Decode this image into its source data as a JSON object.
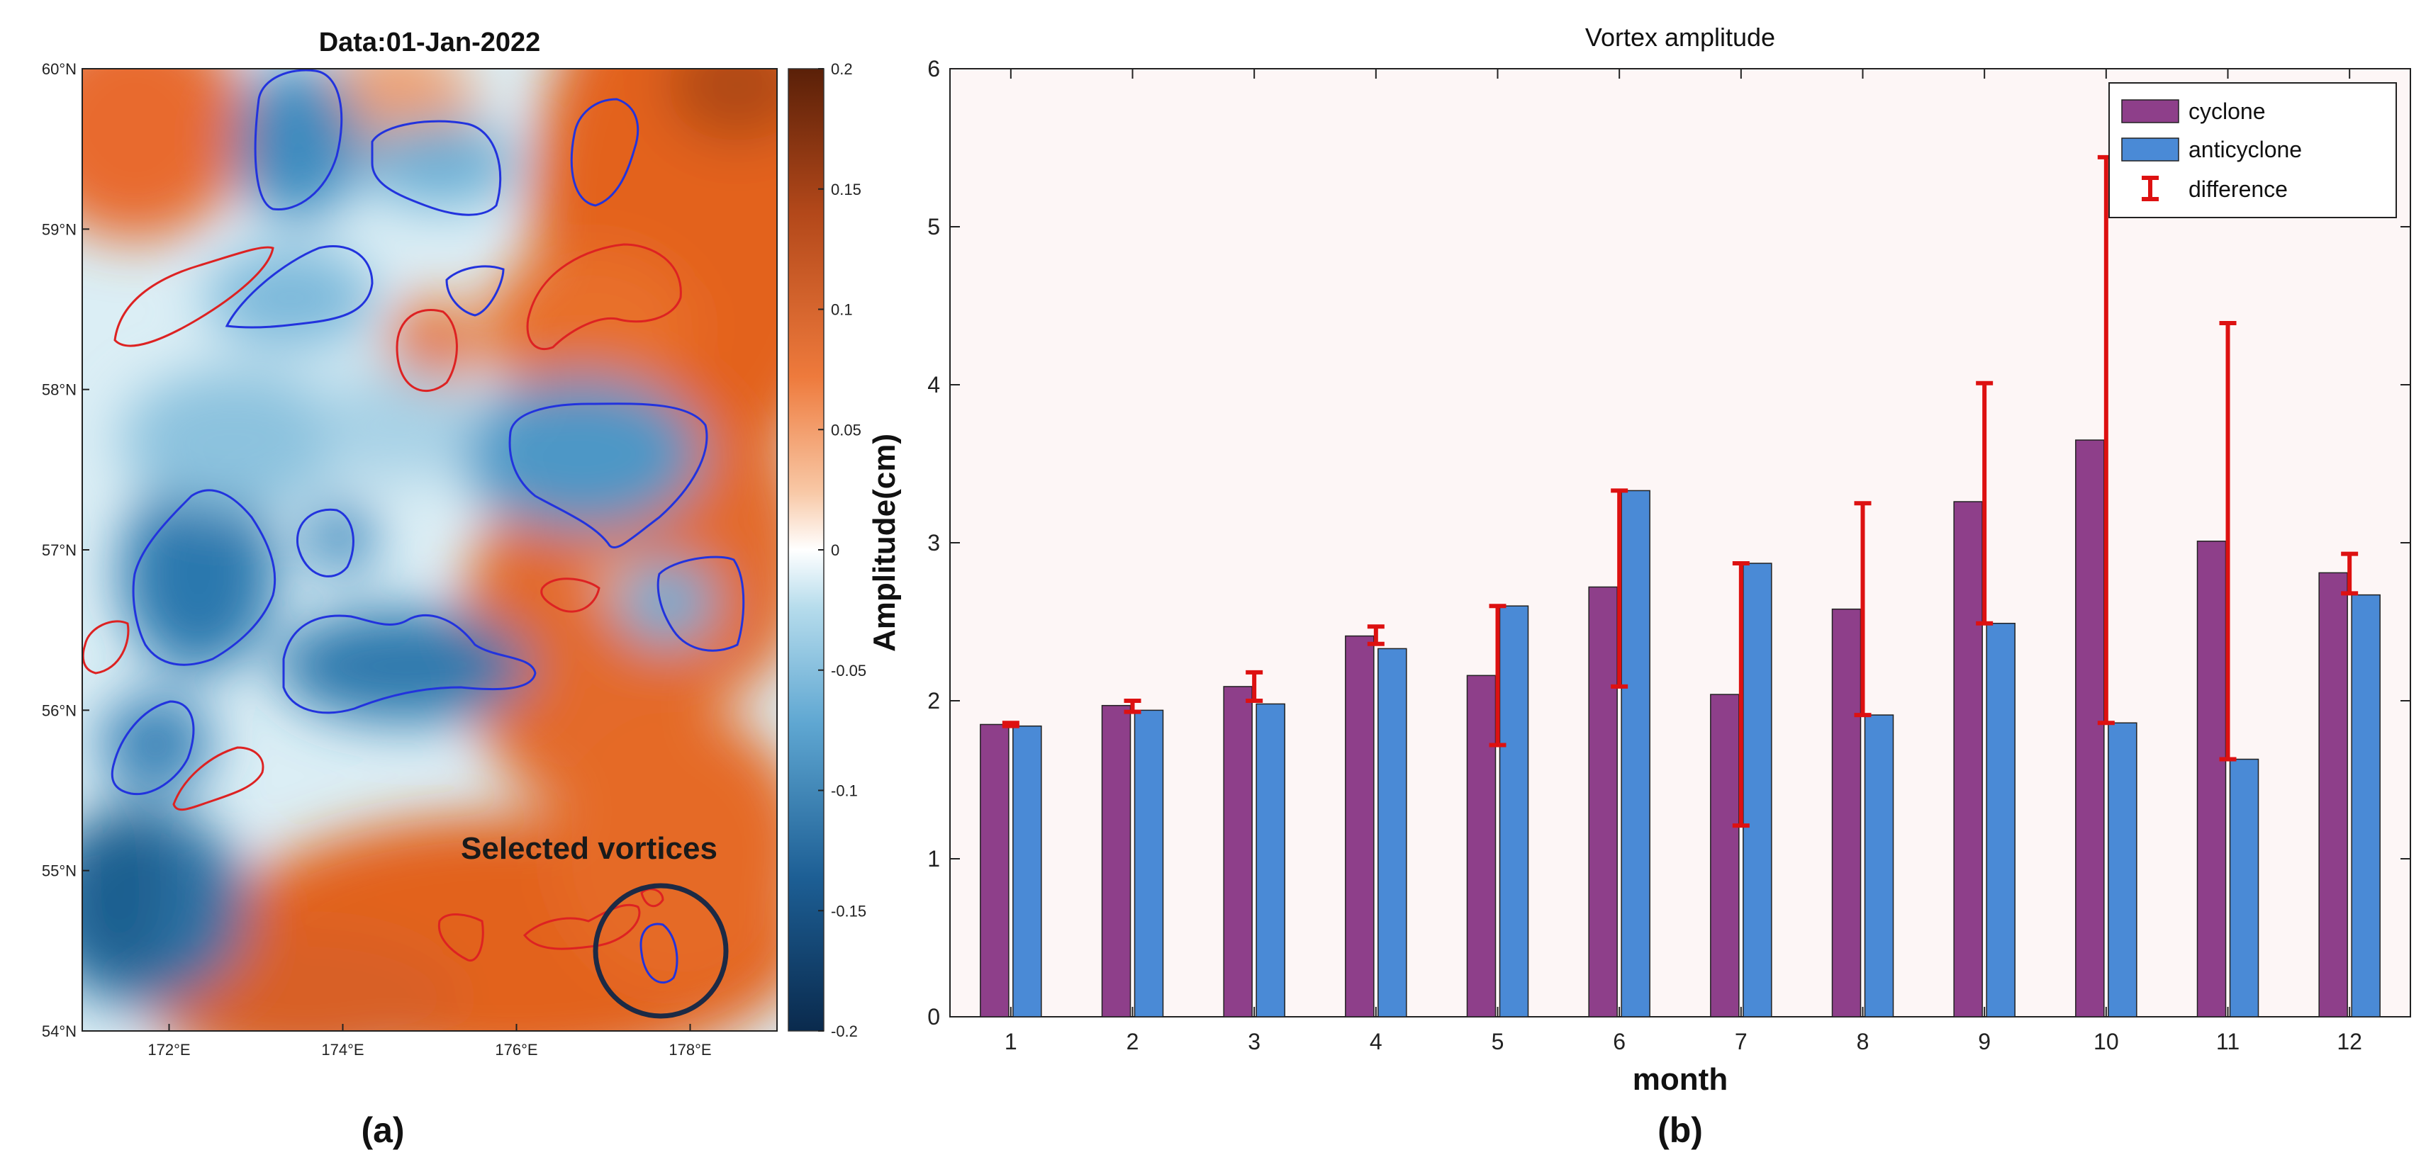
{
  "panel_a": {
    "label": "(a)",
    "title": "Data:01-Jan-2022",
    "annotation": "Selected vortices",
    "lat_ticks": [
      "54°N",
      "55°N",
      "56°N",
      "57°N",
      "58°N",
      "59°N",
      "60°N"
    ],
    "lon_ticks": [
      "172°E",
      "174°E",
      "176°E",
      "178°E"
    ],
    "colorbar_ticks": [
      "0.2",
      "0.15",
      "0.1",
      "0.05",
      "0",
      "-0.05",
      "-0.1",
      "-0.15",
      "-0.2"
    ],
    "colorbar_range": [
      -0.2,
      0.2
    ],
    "colors": {
      "cyclone_contour": "#dd2222",
      "anticyclone_contour": "#2233dd",
      "positive_anomaly": "#e8662a",
      "negative_anomaly": "#2a79b5"
    }
  },
  "panel_b": {
    "label": "(b)"
  },
  "chart_data": {
    "type": "bar",
    "title": "Vortex amplitude",
    "xlabel": "month",
    "ylabel": "Amplitude(cm)",
    "ylim": [
      0,
      6
    ],
    "yticks": [
      "0",
      "1",
      "2",
      "3",
      "4",
      "5",
      "6"
    ],
    "categories": [
      "1",
      "2",
      "3",
      "4",
      "5",
      "6",
      "7",
      "8",
      "9",
      "10",
      "11",
      "12"
    ],
    "series": [
      {
        "name": "cyclone",
        "color": "#8e3f8a",
        "values": [
          1.85,
          1.97,
          2.09,
          2.41,
          2.16,
          2.72,
          2.04,
          2.58,
          3.26,
          3.65,
          3.01,
          2.81
        ]
      },
      {
        "name": "anticyclone",
        "color": "#4a8ad6",
        "values": [
          1.84,
          1.94,
          1.98,
          2.33,
          2.6,
          3.33,
          2.87,
          1.91,
          2.49,
          1.86,
          1.63,
          2.67
        ]
      }
    ],
    "difference": {
      "name": "difference",
      "color": "#dd1111",
      "ranges": [
        [
          1.84,
          1.86
        ],
        [
          1.93,
          2.0
        ],
        [
          2.0,
          2.18
        ],
        [
          2.36,
          2.47
        ],
        [
          1.72,
          2.6
        ],
        [
          2.09,
          3.33
        ],
        [
          1.21,
          2.87
        ],
        [
          1.91,
          3.25
        ],
        [
          2.49,
          4.01
        ],
        [
          1.86,
          5.44
        ],
        [
          1.63,
          4.39
        ],
        [
          2.68,
          2.93
        ]
      ]
    },
    "legend_position": "top-right",
    "grid": false,
    "background": "#fdf6f6"
  }
}
